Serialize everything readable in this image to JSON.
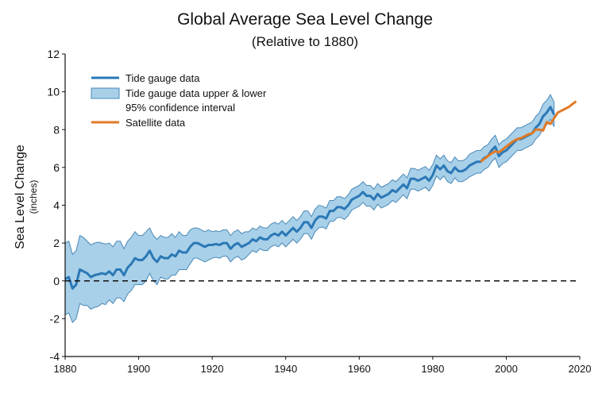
{
  "chart_data": {
    "type": "line",
    "title": "Global Average Sea Level Change",
    "subtitle": "(Relative to 1880)",
    "xlabel": "",
    "ylabel": "Sea Level Change",
    "ylabel_unit": "(inches)",
    "xlim": [
      1880,
      2020
    ],
    "ylim": [
      -4,
      12
    ],
    "xticks": [
      1880,
      1900,
      1920,
      1940,
      1960,
      1980,
      2000,
      2020
    ],
    "yticks": [
      -4,
      -2,
      0,
      2,
      4,
      6,
      8,
      10,
      12
    ],
    "grid": false,
    "legend_position": "top-left",
    "reference_line": {
      "y": 0,
      "style": "dashed"
    },
    "colors": {
      "tide": "#2b78b6",
      "band_fill": "#a8d0e8",
      "band_edge": "#4a88b8",
      "satellite": "#e07a26"
    },
    "legend": [
      {
        "label": "Tide gauge data",
        "kind": "line",
        "color": "#2b78b6"
      },
      {
        "label": "Tide gauge data upper & lower",
        "label2": "95% confidence interval",
        "kind": "band",
        "color": "#a8d0e8"
      },
      {
        "label": "Satellite data",
        "kind": "line",
        "color": "#e07a26"
      }
    ],
    "series": [
      {
        "name": "Tide gauge data",
        "x_start": 1880,
        "values": [
          0.1,
          0.2,
          -0.4,
          -0.2,
          0.6,
          0.5,
          0.4,
          0.2,
          0.3,
          0.35,
          0.4,
          0.35,
          0.5,
          0.3,
          0.6,
          0.6,
          0.3,
          0.7,
          0.9,
          1.2,
          1.1,
          1.1,
          1.3,
          1.6,
          1.2,
          1.0,
          1.3,
          1.2,
          1.2,
          1.4,
          1.3,
          1.6,
          1.5,
          1.5,
          1.8,
          2.0,
          2.0,
          1.9,
          1.8,
          1.9,
          1.9,
          1.95,
          1.9,
          2.0,
          2.0,
          1.7,
          1.9,
          2.0,
          1.8,
          1.9,
          2.0,
          2.2,
          2.1,
          2.3,
          2.2,
          2.2,
          2.4,
          2.5,
          2.4,
          2.6,
          2.4,
          2.6,
          2.8,
          2.6,
          2.8,
          3.1,
          3.1,
          2.8,
          3.2,
          3.4,
          3.4,
          3.3,
          3.7,
          3.7,
          3.9,
          3.9,
          3.8,
          4.0,
          4.3,
          4.4,
          4.5,
          4.7,
          4.5,
          4.5,
          4.3,
          4.6,
          4.4,
          4.5,
          4.6,
          4.8,
          4.7,
          4.9,
          5.1,
          4.9,
          5.4,
          5.4,
          5.3,
          5.4,
          5.5,
          5.3,
          5.6,
          6.1,
          5.9,
          6.1,
          5.8,
          5.7,
          6.0,
          5.8,
          5.8,
          5.9,
          6.1,
          6.2,
          6.3,
          6.3,
          6.5,
          6.6,
          6.9,
          7.1,
          6.6,
          6.8,
          6.9,
          7.1,
          7.3,
          7.5,
          7.5,
          7.6,
          7.7,
          7.8,
          8.1,
          8.3,
          8.7,
          8.9,
          9.2,
          8.8
        ],
        "upper": [
          2.0,
          2.1,
          1.4,
          1.6,
          2.4,
          2.3,
          2.1,
          1.9,
          2.0,
          2.05,
          2.0,
          1.95,
          2.0,
          1.8,
          2.1,
          2.1,
          1.7,
          2.1,
          2.3,
          2.6,
          2.4,
          2.4,
          2.6,
          2.8,
          2.4,
          2.2,
          2.4,
          2.3,
          2.3,
          2.5,
          2.3,
          2.6,
          2.4,
          2.4,
          2.7,
          2.8,
          2.8,
          2.7,
          2.6,
          2.7,
          2.6,
          2.65,
          2.6,
          2.7,
          2.7,
          2.4,
          2.6,
          2.7,
          2.5,
          2.6,
          2.6,
          2.8,
          2.7,
          2.9,
          2.8,
          2.8,
          3.0,
          3.1,
          3.0,
          3.2,
          3.0,
          3.2,
          3.4,
          3.2,
          3.4,
          3.7,
          3.7,
          3.4,
          3.8,
          4.0,
          3.95,
          3.85,
          4.25,
          4.25,
          4.45,
          4.45,
          4.35,
          4.55,
          4.85,
          4.95,
          5.05,
          5.25,
          5.05,
          5.05,
          4.85,
          5.15,
          4.95,
          5.05,
          5.15,
          5.35,
          5.25,
          5.45,
          5.65,
          5.45,
          5.95,
          5.95,
          5.85,
          5.95,
          6.05,
          5.85,
          6.15,
          6.65,
          6.45,
          6.65,
          6.35,
          6.25,
          6.55,
          6.35,
          6.35,
          6.45,
          6.7,
          6.8,
          6.9,
          6.9,
          7.1,
          7.2,
          7.5,
          7.7,
          7.2,
          7.4,
          7.5,
          7.7,
          7.9,
          8.1,
          8.1,
          8.2,
          8.3,
          8.4,
          8.7,
          8.9,
          9.35,
          9.55,
          9.85,
          9.45
        ],
        "lower": [
          -1.8,
          -1.7,
          -2.2,
          -2.0,
          -1.2,
          -1.3,
          -1.3,
          -1.5,
          -1.4,
          -1.35,
          -1.2,
          -1.25,
          -1.0,
          -1.2,
          -0.9,
          -0.9,
          -1.1,
          -0.7,
          -0.5,
          -0.2,
          -0.2,
          -0.2,
          0.0,
          0.4,
          0.0,
          -0.2,
          0.2,
          0.1,
          0.1,
          0.3,
          0.3,
          0.6,
          0.6,
          0.6,
          0.9,
          1.2,
          1.2,
          1.1,
          1.0,
          1.1,
          1.2,
          1.25,
          1.2,
          1.3,
          1.3,
          1.0,
          1.2,
          1.3,
          1.1,
          1.2,
          1.4,
          1.6,
          1.5,
          1.7,
          1.6,
          1.6,
          1.8,
          1.9,
          1.8,
          2.0,
          1.8,
          2.0,
          2.2,
          2.0,
          2.2,
          2.5,
          2.5,
          2.2,
          2.6,
          2.8,
          2.85,
          2.75,
          3.15,
          3.15,
          3.35,
          3.35,
          3.25,
          3.45,
          3.75,
          3.85,
          3.95,
          4.15,
          3.95,
          3.95,
          3.75,
          4.05,
          3.85,
          3.95,
          4.05,
          4.25,
          4.15,
          4.35,
          4.55,
          4.35,
          4.85,
          4.85,
          4.75,
          4.85,
          4.95,
          4.75,
          5.05,
          5.55,
          5.35,
          5.55,
          5.25,
          5.15,
          5.45,
          5.25,
          5.25,
          5.35,
          5.5,
          5.6,
          5.7,
          5.7,
          5.9,
          6.0,
          6.3,
          6.5,
          6.0,
          6.2,
          6.3,
          6.5,
          6.7,
          6.9,
          6.9,
          7.0,
          7.1,
          7.2,
          7.5,
          7.7,
          8.05,
          8.25,
          8.55,
          8.15
        ]
      },
      {
        "name": "Satellite data",
        "x_start": 1993,
        "values": [
          6.3,
          6.45,
          6.6,
          6.75,
          6.85,
          6.8,
          6.95,
          7.1,
          7.25,
          7.4,
          7.5,
          7.55,
          7.65,
          7.75,
          7.8,
          8.0,
          8.0,
          7.95,
          8.4,
          8.3,
          8.6,
          8.9,
          9.0,
          9.1,
          9.2,
          9.35,
          9.5
        ]
      }
    ]
  }
}
